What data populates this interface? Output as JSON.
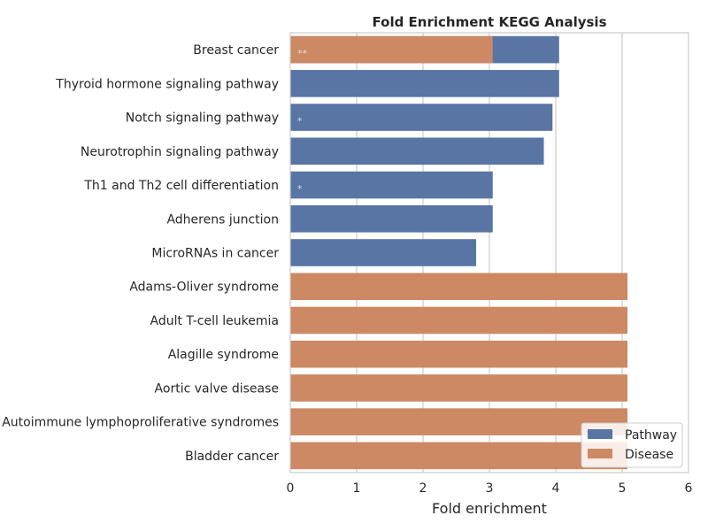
{
  "chart_data": {
    "type": "bar",
    "orientation": "horizontal",
    "title": "Fold Enrichment KEGG Analysis",
    "xlabel": "Fold enrichment",
    "ylabel": "",
    "xlim": [
      0,
      6
    ],
    "xticks": [
      "0",
      "1",
      "2",
      "3",
      "4",
      "5",
      "6"
    ],
    "grid": true,
    "legend_position": "lower right",
    "categories": [
      "Breast cancer",
      "Thyroid hormone signaling pathway",
      "Notch signaling pathway",
      "Neurotrophin signaling pathway",
      "Th1 and Th2 cell differentiation",
      "Adherens junction",
      "MicroRNAs in cancer",
      "Adams-Oliver syndrome",
      "Adult T-cell leukemia",
      "Alagille syndrome",
      "Aortic valve disease",
      "Autoimmune lymphoproliferative syndromes",
      "Bladder cancer"
    ],
    "series": [
      {
        "name": "Pathway",
        "color": "#5875a4",
        "values": [
          4.05,
          4.05,
          3.95,
          3.82,
          3.05,
          3.05,
          2.8,
          null,
          null,
          null,
          null,
          null,
          null
        ]
      },
      {
        "name": "Disease",
        "color": "#cc8963",
        "values": [
          3.05,
          null,
          null,
          null,
          null,
          null,
          null,
          5.08,
          5.08,
          5.08,
          5.08,
          5.08,
          5.08
        ]
      }
    ],
    "annotations": [
      {
        "category": "Breast cancer",
        "text": "**"
      },
      {
        "category": "Notch signaling pathway",
        "text": "*"
      },
      {
        "category": "Th1 and Th2 cell differentiation",
        "text": "*"
      }
    ]
  }
}
